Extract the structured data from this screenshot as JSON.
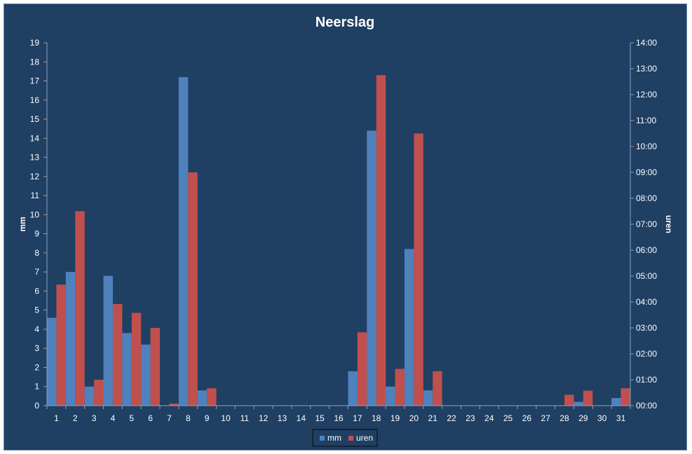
{
  "chart_data": {
    "type": "bar",
    "title": "Neerslag",
    "ylabel": "mm",
    "y2label": "uren",
    "ylim": [
      0,
      19
    ],
    "y2lim_hours": [
      0,
      14
    ],
    "yticks": [
      "0",
      "1",
      "2",
      "3",
      "4",
      "5",
      "6",
      "7",
      "8",
      "9",
      "10",
      "11",
      "12",
      "13",
      "14",
      "15",
      "16",
      "17",
      "18",
      "19"
    ],
    "y2ticks": [
      "00:00",
      "01:00",
      "02:00",
      "03:00",
      "04:00",
      "05:00",
      "06:00",
      "07:00",
      "08:00",
      "09:00",
      "10:00",
      "11:00",
      "12:00",
      "13:00",
      "14:00"
    ],
    "categories": [
      "1",
      "2",
      "3",
      "4",
      "5",
      "6",
      "7",
      "8",
      "9",
      "10",
      "11",
      "12",
      "13",
      "14",
      "15",
      "16",
      "17",
      "18",
      "19",
      "20",
      "21",
      "22",
      "23",
      "24",
      "25",
      "26",
      "27",
      "28",
      "29",
      "30",
      "31"
    ],
    "series": [
      {
        "name": "mm",
        "axis": "left",
        "color": "#4f81bd",
        "values": [
          4.6,
          7.0,
          1.0,
          6.8,
          3.8,
          3.2,
          0,
          17.2,
          0.8,
          0,
          0,
          0,
          0,
          0,
          0,
          0,
          1.8,
          14.4,
          1.0,
          8.2,
          0.8,
          0,
          0,
          0,
          0,
          0,
          0,
          0,
          0.2,
          0,
          0.4
        ]
      },
      {
        "name": "uren",
        "axis": "right",
        "color": "#c0504d",
        "values": [
          4.67,
          7.5,
          1.0,
          3.92,
          3.58,
          3.0,
          0.08,
          9.0,
          0.67,
          0,
          0,
          0,
          0,
          0,
          0,
          0,
          2.83,
          12.75,
          1.42,
          10.5,
          1.33,
          0,
          0,
          0,
          0,
          0,
          0,
          0.42,
          0.58,
          0,
          0.67
        ]
      }
    ],
    "legend_position": "bottom",
    "grid": false
  }
}
